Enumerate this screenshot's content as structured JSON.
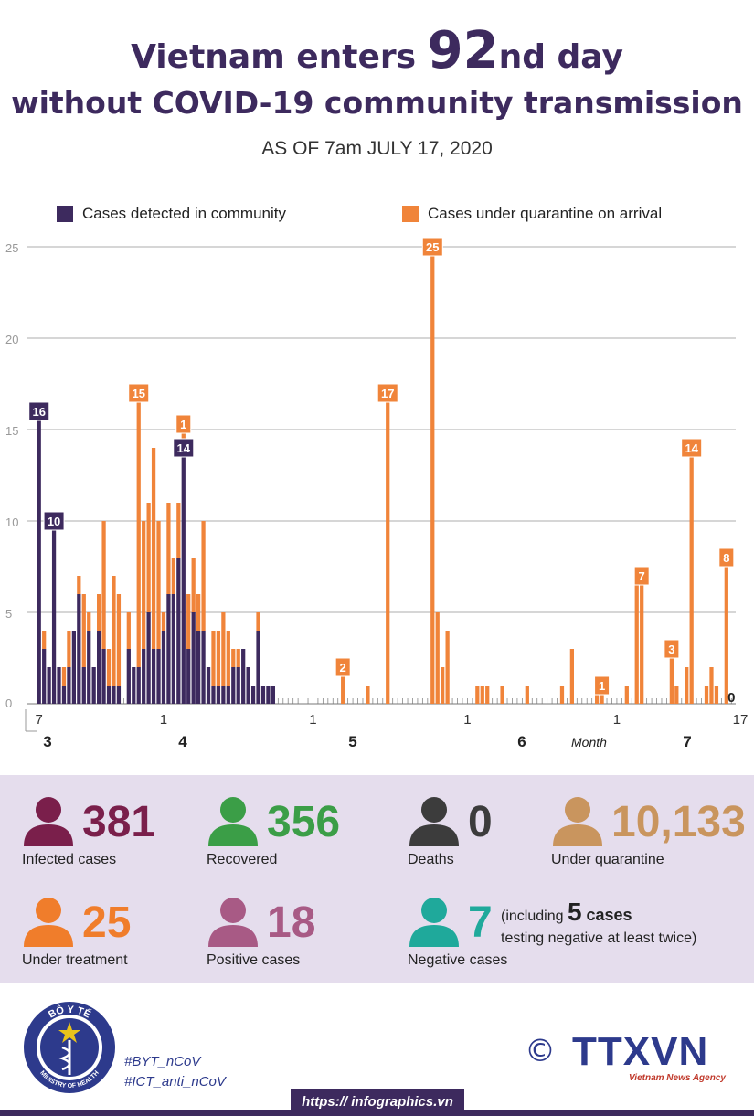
{
  "title": {
    "line1_pre": "Vietnam enters ",
    "line1_num": "92",
    "line1_post": "nd day",
    "line2": "without COVID-19 community transmission",
    "as_of": "AS OF 7am JULY 17, 2020"
  },
  "colors": {
    "community": "#3d2a5e",
    "quarantine": "#f0843a",
    "grid": "#c8c8c8",
    "stats_bg": "#e5dded",
    "title": "#3d2a5e"
  },
  "chart_data": {
    "type": "bar",
    "stacked": true,
    "x_start": "2020-03-07",
    "x_end": "2020-07-17",
    "x_tick_labels": [
      "7",
      "1",
      "1",
      "1",
      "1",
      "1",
      "17"
    ],
    "month_labels": [
      "3",
      "4",
      "5",
      "6",
      "7"
    ],
    "month_axis_label": "Month",
    "ylim": [
      0,
      25
    ],
    "y_ticks": [
      0,
      5,
      10,
      15,
      20,
      25
    ],
    "grid": true,
    "legend_position": "top",
    "series": [
      {
        "name": "Cases detected in community",
        "color": "#3d2a5e",
        "points": [
          [
            "2020-03-07",
            16
          ],
          [
            "2020-03-08",
            3
          ],
          [
            "2020-03-09",
            2
          ],
          [
            "2020-03-10",
            10
          ],
          [
            "2020-03-11",
            2
          ],
          [
            "2020-03-12",
            1
          ],
          [
            "2020-03-13",
            2
          ],
          [
            "2020-03-14",
            4
          ],
          [
            "2020-03-15",
            6
          ],
          [
            "2020-03-16",
            2
          ],
          [
            "2020-03-17",
            4
          ],
          [
            "2020-03-18",
            2
          ],
          [
            "2020-03-19",
            4
          ],
          [
            "2020-03-20",
            3
          ],
          [
            "2020-03-21",
            1
          ],
          [
            "2020-03-22",
            1
          ],
          [
            "2020-03-23",
            1
          ],
          [
            "2020-03-24",
            0
          ],
          [
            "2020-03-25",
            3
          ],
          [
            "2020-03-26",
            2
          ],
          [
            "2020-03-27",
            2
          ],
          [
            "2020-03-28",
            3
          ],
          [
            "2020-03-29",
            5
          ],
          [
            "2020-03-30",
            3
          ],
          [
            "2020-03-31",
            3
          ],
          [
            "2020-04-01",
            4
          ],
          [
            "2020-04-02",
            6
          ],
          [
            "2020-04-03",
            6
          ],
          [
            "2020-04-04",
            8
          ],
          [
            "2020-04-05",
            14
          ],
          [
            "2020-04-06",
            3
          ],
          [
            "2020-04-07",
            5
          ],
          [
            "2020-04-08",
            4
          ],
          [
            "2020-04-09",
            4
          ],
          [
            "2020-04-10",
            2
          ],
          [
            "2020-04-11",
            1
          ],
          [
            "2020-04-12",
            1
          ],
          [
            "2020-04-13",
            1
          ],
          [
            "2020-04-14",
            1
          ],
          [
            "2020-04-15",
            2
          ],
          [
            "2020-04-16",
            2
          ],
          [
            "2020-04-17",
            3
          ],
          [
            "2020-04-18",
            2
          ],
          [
            "2020-04-19",
            1
          ],
          [
            "2020-04-20",
            4
          ],
          [
            "2020-04-21",
            1
          ],
          [
            "2020-04-22",
            1
          ],
          [
            "2020-04-23",
            1
          ]
        ]
      },
      {
        "name": "Cases under quarantine on arrival",
        "color": "#f0843a",
        "points": [
          [
            "2020-03-08",
            1
          ],
          [
            "2020-03-12",
            1
          ],
          [
            "2020-03-13",
            2
          ],
          [
            "2020-03-15",
            1
          ],
          [
            "2020-03-16",
            4
          ],
          [
            "2020-03-17",
            1
          ],
          [
            "2020-03-19",
            2
          ],
          [
            "2020-03-20",
            7
          ],
          [
            "2020-03-21",
            2
          ],
          [
            "2020-03-22",
            6
          ],
          [
            "2020-03-23",
            5
          ],
          [
            "2020-03-25",
            2
          ],
          [
            "2020-03-27",
            15
          ],
          [
            "2020-03-28",
            7
          ],
          [
            "2020-03-29",
            6
          ],
          [
            "2020-03-30",
            11
          ],
          [
            "2020-03-31",
            7
          ],
          [
            "2020-04-01",
            1
          ],
          [
            "2020-04-02",
            5
          ],
          [
            "2020-04-03",
            2
          ],
          [
            "2020-04-04",
            3
          ],
          [
            "2020-04-05",
            1
          ],
          [
            "2020-04-06",
            3
          ],
          [
            "2020-04-07",
            3
          ],
          [
            "2020-04-08",
            2
          ],
          [
            "2020-04-09",
            6
          ],
          [
            "2020-04-11",
            3
          ],
          [
            "2020-04-12",
            3
          ],
          [
            "2020-04-13",
            4
          ],
          [
            "2020-04-14",
            3
          ],
          [
            "2020-04-15",
            1
          ],
          [
            "2020-04-16",
            1
          ],
          [
            "2020-04-20",
            1
          ],
          [
            "2020-05-07",
            2
          ],
          [
            "2020-05-12",
            1
          ],
          [
            "2020-05-16",
            17
          ],
          [
            "2020-05-25",
            25
          ],
          [
            "2020-05-26",
            5
          ],
          [
            "2020-05-27",
            2
          ],
          [
            "2020-05-28",
            4
          ],
          [
            "2020-06-03",
            1
          ],
          [
            "2020-06-04",
            1
          ],
          [
            "2020-06-05",
            1
          ],
          [
            "2020-06-08",
            1
          ],
          [
            "2020-06-13",
            1
          ],
          [
            "2020-06-20",
            1
          ],
          [
            "2020-06-22",
            3
          ],
          [
            "2020-06-27",
            1
          ],
          [
            "2020-06-28",
            1
          ],
          [
            "2020-07-03",
            1
          ],
          [
            "2020-07-05",
            7
          ],
          [
            "2020-07-06",
            7
          ],
          [
            "2020-07-12",
            3
          ],
          [
            "2020-07-13",
            1
          ],
          [
            "2020-07-15",
            2
          ],
          [
            "2020-07-16",
            14
          ],
          [
            "2020-07-19",
            1
          ],
          [
            "2020-07-20",
            2
          ],
          [
            "2020-07-21",
            1
          ],
          [
            "2020-07-23",
            8
          ]
        ]
      }
    ],
    "annotations": [
      {
        "date": "2020-03-07",
        "label": "16",
        "series": "Cases detected in community"
      },
      {
        "date": "2020-03-10",
        "label": "10",
        "series": "Cases detected in community"
      },
      {
        "date": "2020-03-27",
        "label": "15",
        "series": "Cases under quarantine on arrival"
      },
      {
        "date": "2020-04-05",
        "label": "1",
        "series": "Cases under quarantine on arrival"
      },
      {
        "date": "2020-04-05",
        "label": "14",
        "series": "Cases detected in community"
      },
      {
        "date": "2020-05-07",
        "label": "2",
        "series": "Cases under quarantine on arrival"
      },
      {
        "date": "2020-05-16",
        "label": "17",
        "series": "Cases under quarantine on arrival"
      },
      {
        "date": "2020-05-25",
        "label": "25",
        "series": "Cases under quarantine on arrival"
      },
      {
        "date": "2020-06-28",
        "label": "1",
        "series": "Cases under quarantine on arrival"
      },
      {
        "date": "2020-07-06",
        "label": "7",
        "series": "Cases under quarantine on arrival"
      },
      {
        "date": "2020-07-12",
        "label": "3",
        "series": "Cases under quarantine on arrival"
      },
      {
        "date": "2020-07-16",
        "label": "14",
        "series": "Cases under quarantine on arrival"
      },
      {
        "date": "2020-07-23",
        "label": "8",
        "series": "Cases under quarantine on arrival"
      },
      {
        "date": "2020-07-24",
        "label": "0",
        "series": "Cases detected in community"
      }
    ]
  },
  "stats": [
    {
      "value": "381",
      "label": "Infected cases",
      "color": "#7a1f4b",
      "icon": "person-icon"
    },
    {
      "value": "356",
      "label": "Recovered",
      "color": "#3b9e47",
      "icon": "person-icon"
    },
    {
      "value": "0",
      "label": "Deaths",
      "color": "#3c3c3c",
      "icon": "person-icon"
    },
    {
      "value": "10,133",
      "label": "Under quarantine",
      "color": "#c9955e",
      "icon": "person-icon"
    },
    {
      "value": "25",
      "label": "Under treatment",
      "color": "#f07d2b",
      "icon": "person-icon"
    },
    {
      "value": "18",
      "label": "Positive cases",
      "color": "#a85a85",
      "icon": "person-icon"
    },
    {
      "value": "7",
      "label": "Negative cases",
      "color": "#1fa99b",
      "icon": "person-icon"
    }
  ],
  "negative_note": {
    "pre": "(including ",
    "num": "5",
    "cases": " cases",
    "line2": "testing negative at least twice)"
  },
  "footer": {
    "hashtag1": "#BYT_nCoV",
    "hashtag2": "#ICT_anti_nCoV",
    "copyright": "©",
    "agency": "TTXVN",
    "agency_sub": "Vietnam News Agency",
    "seal_top": "BỘ Y TẾ",
    "seal_bottom": "MINISTRY OF HEALTH",
    "url": "https:// infographics.vn"
  }
}
